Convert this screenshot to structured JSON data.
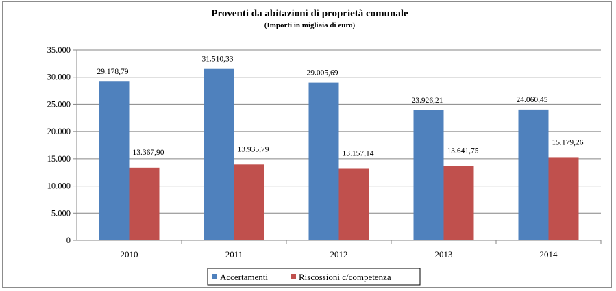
{
  "chart_data": {
    "type": "bar",
    "title": "Proventi da abitazioni di proprietà comunale",
    "subtitle": "(Importi in migliaia di euro)",
    "categories": [
      "2010",
      "2011",
      "2012",
      "2013",
      "2014"
    ],
    "series": [
      {
        "name": "Accertamenti",
        "color": "#4f81bd",
        "values": [
          29178.79,
          31510.33,
          29005.69,
          23926.21,
          24060.45
        ],
        "labels": [
          "29.178,79",
          "31.510,33",
          "29.005,69",
          "23.926,21",
          "24.060,45"
        ]
      },
      {
        "name": "Riscossioni c/competenza",
        "color": "#c0504d",
        "values": [
          13367.9,
          13935.79,
          13157.14,
          13641.75,
          15179.26
        ],
        "labels": [
          "13.367,90",
          "13.935,79",
          "13.157,14",
          "13.641,75",
          "15.179,26"
        ]
      }
    ],
    "yticks": [
      "0",
      "5.000",
      "10.000",
      "15.000",
      "20.000",
      "25.000",
      "30.000",
      "35.000"
    ],
    "ylim": [
      0,
      35000
    ],
    "grid": true,
    "legend": "bottom"
  }
}
